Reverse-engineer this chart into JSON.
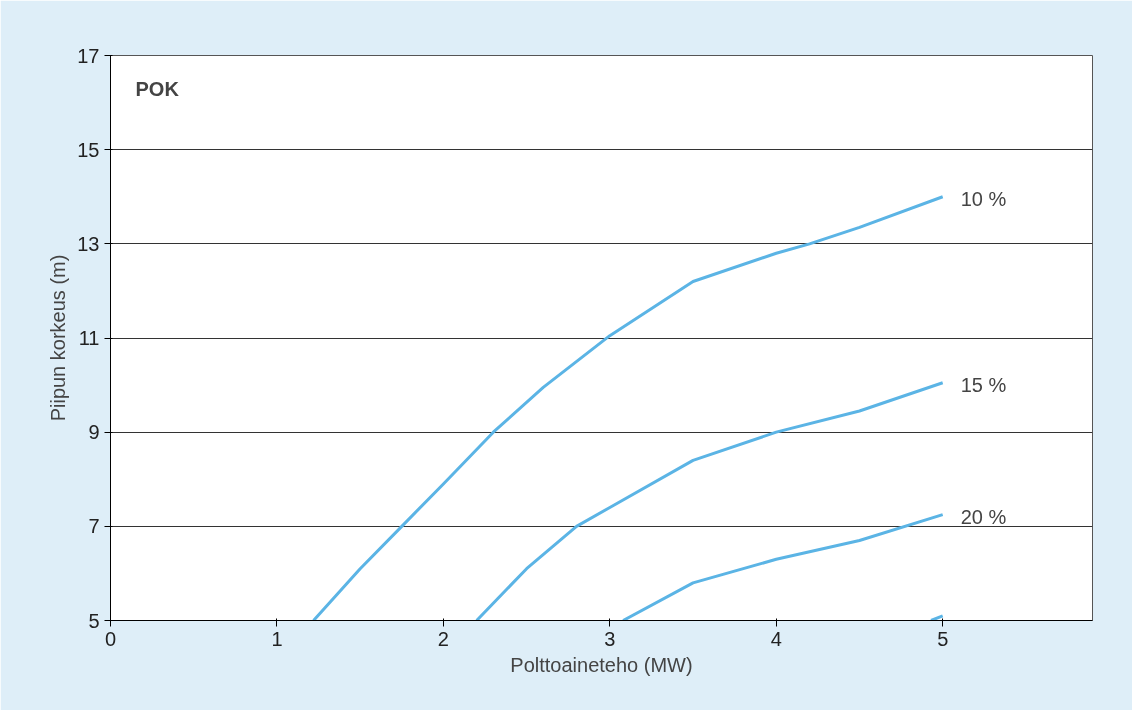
{
  "chart_data": {
    "type": "line",
    "xlabel": "Polttoaineteho (MW)",
    "ylabel": "Piipun korkeus (m)",
    "xlim": [
      0,
      5.9
    ],
    "xticks": [
      0,
      1,
      2,
      3,
      4,
      5
    ],
    "ylim": [
      5,
      17
    ],
    "yticks": [
      5,
      7,
      9,
      11,
      13,
      15,
      17
    ],
    "grid": "y",
    "marker": "none",
    "line_style": "solid",
    "annotations": [
      "POK"
    ],
    "series": [
      {
        "name": "10 %",
        "color": "#5bb4e5",
        "x": [
          1.22,
          1.5,
          1.75,
          2.0,
          2.3,
          2.6,
          3.0,
          3.5,
          4.0,
          4.2,
          4.5,
          5.0
        ],
        "values": [
          5,
          6.1,
          7.0,
          7.9,
          9.0,
          9.95,
          11.05,
          12.2,
          12.8,
          13.0,
          13.35,
          14.0
        ]
      },
      {
        "name": "15 %",
        "color": "#5bb4e5",
        "x": [
          2.2,
          2.5,
          2.8,
          3.0,
          3.5,
          4.0,
          4.5,
          5.0
        ],
        "values": [
          5,
          6.1,
          7.0,
          7.4,
          8.4,
          9.0,
          9.45,
          10.05
        ]
      },
      {
        "name": "20 %",
        "color": "#5bb4e5",
        "x": [
          3.08,
          3.5,
          4.0,
          4.5,
          5.0
        ],
        "values": [
          5,
          5.8,
          6.3,
          6.7,
          7.25
        ]
      },
      {
        "color": "#5bb4e5",
        "x": [
          4.93,
          5.0
        ],
        "values": [
          5,
          5.1
        ]
      }
    ]
  }
}
